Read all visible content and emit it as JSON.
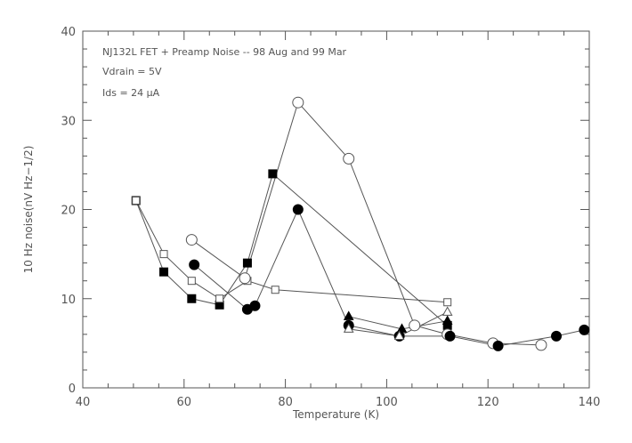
{
  "chart_data": {
    "type": "scatter",
    "xlabel": "Temperature (K)",
    "ylabel": "10 Hz noise(nV Hz−1/2)",
    "xlim": [
      40,
      140
    ],
    "ylim": [
      0,
      40
    ],
    "x_ticks": [
      40,
      60,
      80,
      100,
      120,
      140
    ],
    "y_ticks": [
      0,
      10,
      20,
      30,
      40
    ],
    "x_tick_labels": [
      "40",
      "60",
      "80",
      "100",
      "120",
      "140"
    ],
    "y_tick_labels": [
      "0",
      "10",
      "20",
      "30",
      "40"
    ],
    "annotations": [
      "NJ132L FET + Preamp Noise -- 98 Aug and 99 Mar",
      "Vdrain = 5V",
      "Ids = 24 μA"
    ],
    "grid": false,
    "line_color": "#555555",
    "marker_color": "#000000",
    "series": [
      {
        "marker": "filled-square",
        "points": [
          [
            50.5,
            21
          ],
          [
            56,
            13
          ],
          [
            61.5,
            10
          ],
          [
            67,
            9.3
          ],
          [
            72.5,
            14
          ],
          [
            77.5,
            24
          ],
          [
            112,
            7
          ]
        ]
      },
      {
        "marker": "open-square",
        "points": [
          [
            50.5,
            21
          ],
          [
            56,
            15
          ],
          [
            61.5,
            12
          ],
          [
            67,
            10
          ],
          [
            72.5,
            12
          ],
          [
            78,
            11
          ],
          [
            112,
            9.6
          ]
        ]
      },
      {
        "marker": "open-circle",
        "points": [
          [
            61.5,
            16.6
          ],
          [
            72,
            12.3
          ],
          [
            82.5,
            32
          ],
          [
            92.5,
            25.7
          ],
          [
            105.5,
            7
          ],
          [
            112,
            6
          ],
          [
            121,
            5
          ],
          [
            130.5,
            4.8
          ]
        ]
      },
      {
        "marker": "filled-circle",
        "points": [
          [
            62,
            13.8
          ],
          [
            72.5,
            8.8
          ],
          [
            74,
            9.2
          ],
          [
            82.5,
            20
          ],
          [
            92.5,
            7
          ],
          [
            102.5,
            5.8
          ],
          [
            112.5,
            5.8
          ],
          [
            122,
            4.7
          ],
          [
            133.5,
            5.8
          ],
          [
            139,
            6.5
          ]
        ]
      },
      {
        "marker": "filled-triangle",
        "points": [
          [
            92.5,
            8
          ],
          [
            103,
            6.6
          ],
          [
            112,
            7.5
          ]
        ]
      },
      {
        "marker": "open-triangle",
        "points": [
          [
            92.5,
            6.6
          ],
          [
            102.5,
            5.8
          ],
          [
            112,
            8.5
          ]
        ]
      }
    ]
  }
}
